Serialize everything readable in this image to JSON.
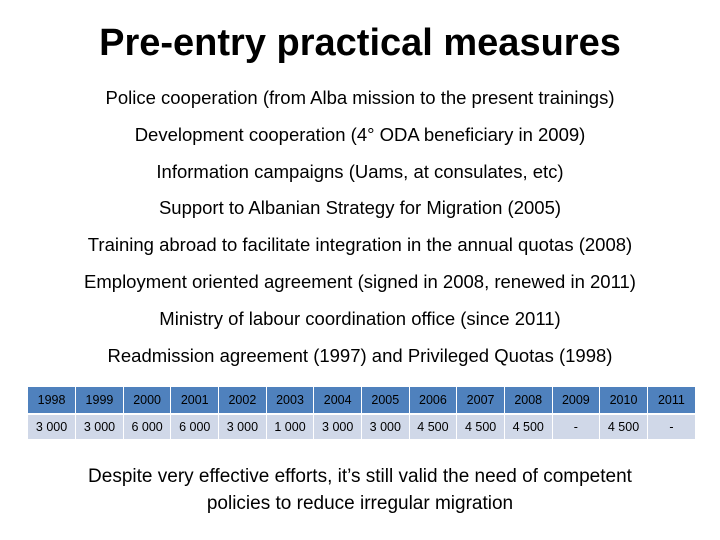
{
  "title": "Pre-entry practical measures",
  "bullets": [
    "Police cooperation (from Alba mission to the present trainings)",
    "Development cooperation (4° ODA beneficiary in 2009)",
    "Information campaigns (Uams, at consulates, etc)",
    "Support to Albanian Strategy for Migration (2005)",
    "Training abroad to facilitate integration in the annual quotas (2008)",
    "Employment oriented agreement (signed in 2008, renewed in 2011)",
    "Ministry of labour coordination office (since 2011)",
    "Readmission agreement (1997) and Privileged Quotas (1998)"
  ],
  "table": {
    "years": [
      "1998",
      "1999",
      "2000",
      "2001",
      "2002",
      "2003",
      "2004",
      "2005",
      "2006",
      "2007",
      "2008",
      "2009",
      "2010",
      "2011"
    ],
    "values": [
      "3 000",
      "3 000",
      "6 000",
      "6 000",
      "3 000",
      "1 000",
      "3 000",
      "3 000",
      "4 500",
      "4 500",
      "4 500",
      "-",
      "4 500",
      "-"
    ]
  },
  "footer": {
    "line1": "Despite very effective efforts, it’s still valid the need of competent",
    "line2": "policies to reduce irregular migration"
  }
}
